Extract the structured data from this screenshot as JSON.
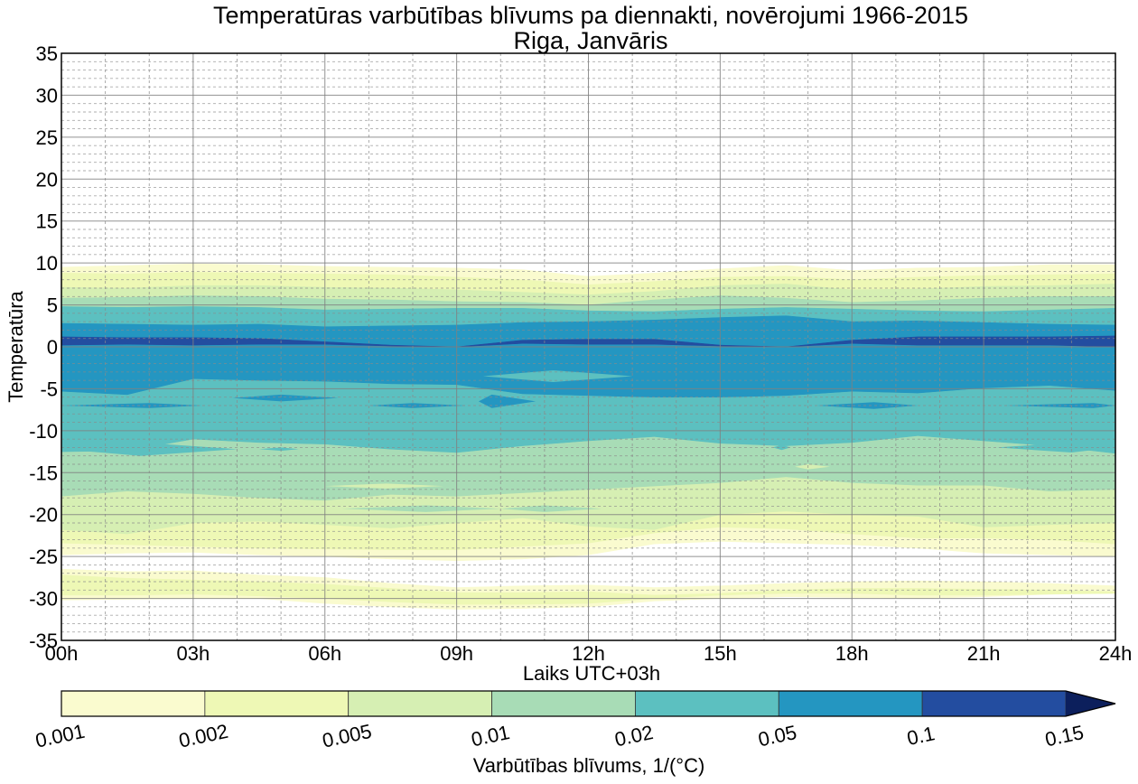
{
  "chart_data": {
    "type": "contourf",
    "title": "Temperatūras varbūtības blīvums pa diennakti, novērojumi 1966-2015",
    "subtitle": "Riga, Janvāris",
    "xlabel": "Laiks UTC+03h",
    "ylabel": "Temperatūra",
    "xlim": [
      0,
      24
    ],
    "ylim": [
      -35,
      35
    ],
    "x_ticks": [
      0,
      3,
      6,
      9,
      12,
      15,
      18,
      21,
      24
    ],
    "x_tick_labels": [
      "00h",
      "03h",
      "06h",
      "09h",
      "12h",
      "15h",
      "18h",
      "21h",
      "24h"
    ],
    "y_ticks": [
      -35,
      -30,
      -25,
      -20,
      -15,
      -10,
      -5,
      0,
      5,
      10,
      15,
      20,
      25,
      30,
      35
    ],
    "y_tick_labels": [
      "-35",
      "-30",
      "-25",
      "-20",
      "-15",
      "-10",
      "-5",
      "0",
      "5",
      "10",
      "15",
      "20",
      "25",
      "30",
      "35"
    ],
    "grid": {
      "major": true,
      "minor": true,
      "x_minor_step_hours": 1,
      "y_minor_step": 1
    },
    "colorbar": {
      "label": "Varbūtības blīvums, 1/(°C)",
      "orientation": "horizontal",
      "placement": "bottom",
      "extend": "max",
      "levels": [
        0.001,
        0.002,
        0.005,
        0.01,
        0.02,
        0.05,
        0.1,
        0.15
      ],
      "tick_labels": [
        "0.001",
        "0.002",
        "0.005",
        "0.01",
        "0.02",
        "0.05",
        "0.1",
        "0.15"
      ],
      "colors": [
        "#fafbcf",
        "#eef8b5",
        "#d6efb3",
        "#a8dcb6",
        "#5cc0c0",
        "#2496c1",
        "#234da0",
        "#0c1f5c"
      ]
    },
    "hours": [
      0,
      1.5,
      3,
      4.5,
      6,
      7.5,
      9,
      10.5,
      12,
      13.5,
      15,
      16.5,
      18,
      19.5,
      21,
      22.5,
      24
    ],
    "bands": [
      {
        "level": 0.001,
        "color_index": 0,
        "top": [
          9.5,
          9.7,
          9.9,
          9.8,
          9.6,
          9.5,
          9.4,
          9.2,
          8.4,
          8.8,
          9.3,
          9.7,
          9.1,
          9.4,
          9.5,
          9.8,
          9.8
        ],
        "bottom": [
          -24.8,
          -24.6,
          -24.5,
          -24.8,
          -25.0,
          -25.3,
          -25.5,
          -25.3,
          -24.8,
          -23.5,
          -23.2,
          -23.4,
          -23.6,
          -24.0,
          -24.6,
          -24.8,
          -25.0
        ]
      },
      {
        "level": 0.001,
        "color_index": 0,
        "top": [
          -26.5,
          -26.8,
          -26.7,
          -27.2,
          -27.5,
          -28.2,
          -28.7,
          -28.5,
          -28.4,
          -28.7,
          -28.5,
          -28.2,
          -28.0,
          -27.9,
          -28.0,
          -28.2,
          -28.5
        ],
        "bottom": [
          -30.2,
          -30.1,
          -30.0,
          -30.0,
          -30.6,
          -31.0,
          -31.3,
          -31.2,
          -31.0,
          -30.3,
          -30.0,
          -29.8,
          -29.9,
          -30.0,
          -29.8,
          -29.5,
          -29.3
        ]
      },
      {
        "level": 0.002,
        "color_index": 1,
        "top": [
          8.8,
          8.7,
          8.9,
          8.8,
          8.7,
          8.6,
          8.3,
          8.0,
          7.4,
          7.8,
          8.3,
          8.4,
          8.0,
          8.3,
          8.5,
          8.6,
          8.7
        ],
        "bottom": [
          -23.4,
          -23.6,
          -23.8,
          -24.0,
          -24.1,
          -24.2,
          -24.2,
          -23.8,
          -23.4,
          -22.2,
          -21.5,
          -21.7,
          -22.3,
          -22.8,
          -22.8,
          -23.0,
          -23.5
        ]
      },
      {
        "level": 0.002,
        "color_index": 1,
        "top": [
          -27.2,
          -27.6,
          -27.8,
          -28.0,
          -28.3,
          -28.8,
          -29.3,
          -29.3,
          -29.2,
          -29.6,
          -29.4,
          -29.0,
          -28.8,
          -28.8,
          -28.9,
          -29.0,
          -29.2
        ],
        "bottom": [
          -29.6,
          -29.6,
          -29.5,
          -29.7,
          -30.0,
          -30.4,
          -30.7,
          -30.7,
          -30.6,
          -30.0,
          -29.6,
          -29.4,
          -29.4,
          -29.6,
          -29.6,
          -29.5,
          -29.4
        ]
      },
      {
        "level": 0.005,
        "color_index": 2,
        "top": [
          7.1,
          7.0,
          7.3,
          7.3,
          7.1,
          7.0,
          6.8,
          6.5,
          6.2,
          6.6,
          7.3,
          7.5,
          6.8,
          6.9,
          7.2,
          7.3,
          7.5
        ],
        "bottom": [
          -21.8,
          -22.3,
          -21.0,
          -20.8,
          -21.2,
          -21.6,
          -21.0,
          -20.4,
          -21.4,
          -21.8,
          -20.0,
          -19.6,
          -20.0,
          -20.2,
          -21.5,
          -21.2,
          -21.0
        ]
      },
      {
        "level": 0.01,
        "color_index": 3,
        "top": [
          5.8,
          5.9,
          6.1,
          6.0,
          5.7,
          5.6,
          5.4,
          5.3,
          5.0,
          5.6,
          6.1,
          5.8,
          5.3,
          5.5,
          5.8,
          6.0,
          6.0
        ],
        "bottom": [
          -17.8,
          -17.2,
          -17.5,
          -18.0,
          -18.3,
          -17.6,
          -17.8,
          -17.4,
          -17.0,
          -16.6,
          -16.2,
          -15.5,
          -16.2,
          -16.5,
          -16.5,
          -17.2,
          -17.0
        ]
      },
      {
        "level": 0.02,
        "color_index": 4,
        "top": [
          4.8,
          4.7,
          4.8,
          4.7,
          4.4,
          4.5,
          4.6,
          4.6,
          4.3,
          4.2,
          4.5,
          4.7,
          4.5,
          4.3,
          4.2,
          4.4,
          4.6
        ],
        "bottom": [
          -12.5,
          -12.4,
          -11.0,
          -11.4,
          -11.6,
          -12.2,
          -12.6,
          -11.8,
          -11.2,
          -10.7,
          -11.5,
          -11.8,
          -11.4,
          -10.6,
          -11.2,
          -11.8,
          -12.7
        ]
      },
      {
        "level": 0.05,
        "color_index": 5,
        "top": [
          2.8,
          2.7,
          2.6,
          2.7,
          2.4,
          2.5,
          2.6,
          2.9,
          3.0,
          3.2,
          3.5,
          3.7,
          3.0,
          3.1,
          2.9,
          2.7,
          2.6
        ],
        "bottom": [
          -5.3,
          -5.7,
          -3.8,
          -4.0,
          -4.1,
          -4.4,
          -4.5,
          -5.6,
          -5.8,
          -6.0,
          -6.0,
          -5.8,
          -5.3,
          -5.5,
          -4.9,
          -4.6,
          -5.2
        ]
      },
      {
        "level": 0.1,
        "color_index": 6,
        "top": [
          1.2,
          1.1,
          1.1,
          1.0,
          0.6,
          0.2,
          0.0,
          0.8,
          0.9,
          0.9,
          0.2,
          0.0,
          0.8,
          1.2,
          1.2,
          1.2,
          1.3
        ],
        "bottom": [
          0.2,
          0.3,
          0.2,
          0.3,
          0.3,
          0.1,
          0.0,
          0.4,
          0.3,
          0.3,
          0.1,
          0.0,
          0.4,
          0.2,
          0.2,
          0.2,
          0.0
        ]
      }
    ],
    "islands": [
      {
        "level": 0.05,
        "color_index": 5,
        "x": [
          0,
          2.0,
          3.2
        ],
        "y": -7.0,
        "half_height": 0.3
      },
      {
        "level": 0.05,
        "color_index": 5,
        "x": [
          3.9,
          5.0,
          6.3
        ],
        "y": -6.1,
        "half_height": 0.4
      },
      {
        "level": 0.05,
        "color_index": 5,
        "x": [
          7.0,
          8.0,
          9.2
        ],
        "y": -7.0,
        "half_height": 0.3
      },
      {
        "level": 0.05,
        "color_index": 5,
        "x": [
          9.5,
          9.8,
          10.8
        ],
        "y": -6.5,
        "half_height": 0.8
      },
      {
        "level": 0.05,
        "color_index": 5,
        "x": [
          17.2,
          18.5,
          19.5
        ],
        "y": -7.0,
        "half_height": 0.4
      },
      {
        "level": 0.05,
        "color_index": 5,
        "x": [
          21.5,
          23.5,
          24
        ],
        "y": -7.0,
        "half_height": 0.3
      },
      {
        "level": 0.02,
        "color_index": 4,
        "x": [
          0,
          1.8,
          4.0
        ],
        "y": -12.2,
        "half_height": 0.8
      },
      {
        "level": 0.02,
        "color_index": 4,
        "x": [
          4.5,
          5.0,
          5.4
        ],
        "y": -12.2,
        "half_height": 0.2
      },
      {
        "level": 0.02,
        "color_index": 4,
        "x": [
          16.2,
          16.4,
          16.6
        ],
        "y": -12.0,
        "half_height": 0.3
      },
      {
        "level": 0.02,
        "color_index": 4,
        "x": [
          21.3,
          23.0,
          24
        ],
        "y": -12.0,
        "half_height": 0.6
      },
      {
        "level": 0.02,
        "color_index": 4,
        "x": [
          9.6,
          11.2,
          13.0
        ],
        "y": -3.5,
        "half_height": 0.7
      },
      {
        "level": 0.02,
        "color_index": 4,
        "x": [
          6.7,
          8.0,
          9.5
        ],
        "y": -10.8,
        "half_height": 0.3
      },
      {
        "level": 0.01,
        "color_index": 3,
        "x": [
          6.4,
          8.3,
          10.0
        ],
        "y": -19.3,
        "half_height": 0.4
      },
      {
        "level": 0.01,
        "color_index": 3,
        "x": [
          10.0,
          11.0,
          12.3
        ],
        "y": -19.3,
        "half_height": 0.4
      },
      {
        "level": 0.005,
        "color_index": 2,
        "x": [
          6.0,
          7.4,
          8.7
        ],
        "y": -16.6,
        "half_height": 0.3
      },
      {
        "level": 0.005,
        "color_index": 2,
        "x": [
          16.7,
          17.0,
          17.5
        ],
        "y": -14.3,
        "half_height": 0.3
      }
    ]
  }
}
